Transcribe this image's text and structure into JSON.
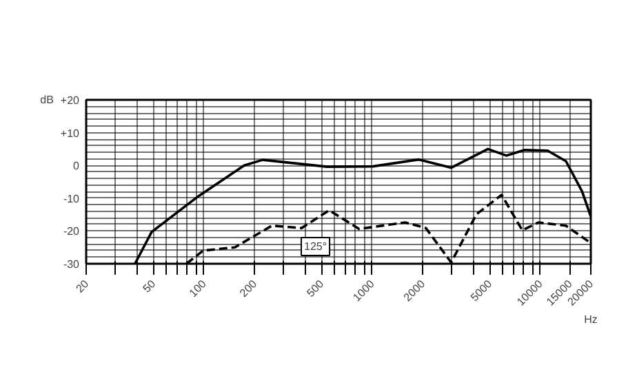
{
  "chart_data": {
    "type": "line",
    "xlabel": "Hz",
    "ylabel": "dB",
    "series": [
      {
        "color": "#000000",
        "line_style": "solid",
        "x": [
          39,
          49,
          93,
          174,
          224,
          540,
          1014,
          1900,
          2955,
          4890,
          6285,
          8090,
          11070,
          14220,
          17740,
          20000
        ],
        "values": [
          -30,
          -20.3,
          -9.4,
          0,
          1.7,
          -0.4,
          -0.3,
          1.8,
          -0.7,
          5,
          3,
          4.7,
          4.5,
          1.3,
          -7.9,
          -15.6
        ]
      },
      {
        "name": "125°",
        "color": "#000000",
        "line_style": "dashed",
        "x": [
          79,
          99,
          153,
          254,
          382,
          557,
          839,
          1574,
          2090,
          2958,
          4180,
          5900,
          7830,
          9770,
          14220,
          19500
        ],
        "values": [
          -30,
          -26,
          -25,
          -18.4,
          -19.1,
          -13.7,
          -19.4,
          -17.4,
          -19.1,
          -29.6,
          -14.9,
          -9,
          -19.8,
          -17.4,
          -18.4,
          -23.3
        ]
      }
    ],
    "log": "x",
    "xlim": [
      20,
      20000
    ],
    "ylim": [
      -30,
      20
    ],
    "xticks": [
      20,
      {
        "value": 30,
        "label": null
      },
      {
        "value": 40,
        "label": null
      },
      50,
      {
        "value": 60,
        "label": null
      },
      {
        "value": 70,
        "label": null
      },
      {
        "value": 80,
        "label": null
      },
      {
        "value": 90,
        "label": null
      },
      100,
      200,
      {
        "value": 300,
        "label": null
      },
      {
        "value": 400,
        "label": null
      },
      500,
      {
        "value": 600,
        "label": null
      },
      {
        "value": 700,
        "label": null
      },
      {
        "value": 800,
        "label": null
      },
      {
        "value": 900,
        "label": null
      },
      1000,
      2000,
      {
        "value": 3000,
        "label": null
      },
      {
        "value": 4000,
        "label": null
      },
      5000,
      {
        "value": 6000,
        "label": null
      },
      {
        "value": 7000,
        "label": null
      },
      {
        "value": 8000,
        "label": null
      },
      {
        "value": 9000,
        "label": null
      },
      10000,
      15000,
      20000
    ],
    "yticks": [
      {
        "value": -30,
        "label": "-30"
      },
      {
        "value": -28,
        "label": null
      },
      {
        "value": -26,
        "label": null
      },
      {
        "value": -24,
        "label": null
      },
      {
        "value": -22,
        "label": null
      },
      {
        "value": -20,
        "label": "-20"
      },
      {
        "value": -18,
        "label": null
      },
      {
        "value": -16,
        "label": null
      },
      {
        "value": -14,
        "label": null
      },
      {
        "value": -12,
        "label": null
      },
      {
        "value": -10,
        "label": "-10"
      },
      {
        "value": -8,
        "label": null
      },
      {
        "value": -6,
        "label": null
      },
      {
        "value": -4,
        "label": null
      },
      {
        "value": -2,
        "label": null
      },
      {
        "value": 0,
        "label": "0"
      },
      {
        "value": 2,
        "label": null
      },
      {
        "value": 4,
        "label": null
      },
      {
        "value": 6,
        "label": null
      },
      {
        "value": 8,
        "label": null
      },
      {
        "value": 10,
        "label": "+10"
      },
      {
        "value": 12,
        "label": null
      },
      {
        "value": 14,
        "label": null
      },
      {
        "value": 16,
        "label": null
      },
      {
        "value": 18,
        "label": null
      },
      {
        "value": 20,
        "label": "+20"
      }
    ],
    "grid": true
  }
}
